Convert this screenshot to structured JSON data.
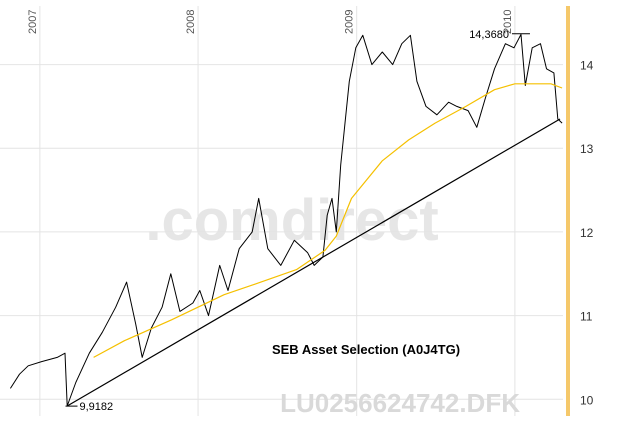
{
  "chart_data": {
    "type": "line",
    "year_labels": [
      "2007",
      "2008",
      "2009",
      "2010"
    ],
    "y_ticks": [
      10,
      11,
      12,
      13,
      14
    ],
    "ylim": [
      9.8,
      14.7
    ],
    "grid": true,
    "annotations": {
      "max_label": "14,3680",
      "max_point": {
        "x": "2010-01",
        "y": 14.368
      },
      "min_label": "9,9182",
      "min_point": {
        "x": "2007-03",
        "y": 9.9182
      },
      "name_label": "SEB Asset Selection (A0J4TG)"
    },
    "watermarks": {
      "brand": ".comdirect",
      "isin": "LU0256624742.DFK"
    },
    "series": [
      {
        "kind": "price",
        "color": "#000000",
        "points": [
          [
            "2006-10-25",
            10.13
          ],
          [
            "2006-11-15",
            10.3
          ],
          [
            "2006-12-05",
            10.4
          ],
          [
            "2007-01-05",
            10.45
          ],
          [
            "2007-02-10",
            10.5
          ],
          [
            "2007-02-28",
            10.55
          ],
          [
            "2007-03-05",
            9.92
          ],
          [
            "2007-03-25",
            10.2
          ],
          [
            "2007-04-25",
            10.55
          ],
          [
            "2007-05-25",
            10.8
          ],
          [
            "2007-06-25",
            11.1
          ],
          [
            "2007-07-20",
            11.4
          ],
          [
            "2007-08-10",
            10.9
          ],
          [
            "2007-08-25",
            10.5
          ],
          [
            "2007-09-15",
            10.85
          ],
          [
            "2007-10-10",
            11.1
          ],
          [
            "2007-10-30",
            11.5
          ],
          [
            "2007-11-20",
            11.05
          ],
          [
            "2007-12-20",
            11.15
          ],
          [
            "2008-01-05",
            11.3
          ],
          [
            "2008-01-25",
            11.0
          ],
          [
            "2008-02-20",
            11.6
          ],
          [
            "2008-03-10",
            11.3
          ],
          [
            "2008-04-05",
            11.8
          ],
          [
            "2008-05-05",
            12.0
          ],
          [
            "2008-05-20",
            12.4
          ],
          [
            "2008-06-10",
            11.8
          ],
          [
            "2008-07-10",
            11.6
          ],
          [
            "2008-08-10",
            11.9
          ],
          [
            "2008-09-10",
            11.75
          ],
          [
            "2008-09-25",
            11.6
          ],
          [
            "2008-10-15",
            11.7
          ],
          [
            "2008-10-25",
            12.2
          ],
          [
            "2008-11-05",
            12.4
          ],
          [
            "2008-11-15",
            12.0
          ],
          [
            "2008-11-25",
            12.8
          ],
          [
            "2008-12-05",
            13.3
          ],
          [
            "2008-12-15",
            13.8
          ],
          [
            "2008-12-30",
            14.2
          ],
          [
            "2009-01-15",
            14.35
          ],
          [
            "2009-02-05",
            14.0
          ],
          [
            "2009-03-01",
            14.15
          ],
          [
            "2009-03-25",
            14.0
          ],
          [
            "2009-04-15",
            14.25
          ],
          [
            "2009-05-05",
            14.35
          ],
          [
            "2009-05-20",
            13.8
          ],
          [
            "2009-06-10",
            13.5
          ],
          [
            "2009-07-05",
            13.4
          ],
          [
            "2009-08-01",
            13.55
          ],
          [
            "2009-08-20",
            13.5
          ],
          [
            "2009-09-15",
            13.45
          ],
          [
            "2009-10-05",
            13.25
          ],
          [
            "2009-10-25",
            13.6
          ],
          [
            "2009-11-15",
            13.95
          ],
          [
            "2009-12-10",
            14.25
          ],
          [
            "2009-12-30",
            14.2
          ],
          [
            "2010-01-15",
            14.36
          ],
          [
            "2010-01-25",
            13.75
          ],
          [
            "2010-02-10",
            14.2
          ],
          [
            "2010-03-01",
            14.25
          ],
          [
            "2010-03-15",
            13.95
          ],
          [
            "2010-04-01",
            13.9
          ],
          [
            "2010-04-10",
            13.35
          ],
          [
            "2010-04-20",
            13.3
          ]
        ]
      },
      {
        "kind": "moving-average",
        "color": "#f5c000",
        "points": [
          [
            "2007-05-05",
            10.5
          ],
          [
            "2007-07-15",
            10.7
          ],
          [
            "2007-11-01",
            10.95
          ],
          [
            "2008-03-01",
            11.25
          ],
          [
            "2008-05-25",
            11.4
          ],
          [
            "2008-08-15",
            11.55
          ],
          [
            "2008-10-20",
            11.78
          ],
          [
            "2008-11-15",
            11.95
          ],
          [
            "2008-12-20",
            12.4
          ],
          [
            "2009-03-01",
            12.85
          ],
          [
            "2009-05-01",
            13.1
          ],
          [
            "2009-07-01",
            13.3
          ],
          [
            "2009-09-10",
            13.5
          ],
          [
            "2009-11-15",
            13.7
          ],
          [
            "2010-01-01",
            13.77
          ],
          [
            "2010-02-15",
            13.77
          ],
          [
            "2010-03-25",
            13.77
          ],
          [
            "2010-04-20",
            13.72
          ]
        ]
      },
      {
        "kind": "trendline",
        "color": "#000000",
        "points": [
          [
            "2007-03-05",
            9.92
          ],
          [
            "2010-04-15",
            13.35
          ]
        ]
      }
    ]
  }
}
